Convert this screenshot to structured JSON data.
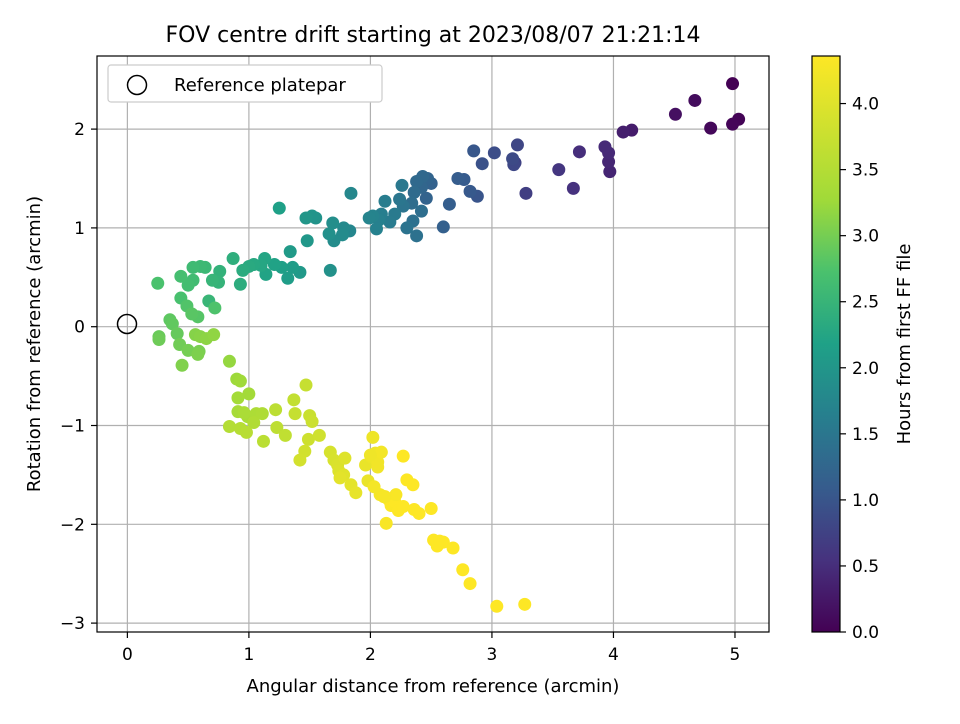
{
  "chart_data": {
    "type": "scatter",
    "title": "FOV centre drift starting at 2023/08/07 21:21:14",
    "xlabel": "Angular distance from reference (arcmin)",
    "ylabel": "Rotation from reference (arcmin)",
    "xlim": [
      -0.25,
      5.28
    ],
    "ylim": [
      -3.09,
      2.74
    ],
    "xticks": [
      "0",
      "1",
      "2",
      "3",
      "4",
      "5"
    ],
    "yticks": [
      "−3",
      "−2",
      "−1",
      "0",
      "1",
      "2"
    ],
    "grid": true,
    "legend": {
      "position": "top-left",
      "label": "Reference platepar"
    },
    "reference_point": {
      "x": 0,
      "y": 0
    },
    "colorbar": {
      "label": "Hours from first FF file",
      "range": [
        0,
        4.36
      ],
      "ticks": [
        "0.0",
        "0.5",
        "1.0",
        "1.5",
        "2.0",
        "2.5",
        "3.0",
        "3.5",
        "4.0"
      ],
      "colormap": "viridis"
    },
    "points": [
      [
        4.98,
        2.46,
        0.0
      ],
      [
        5.03,
        2.1,
        0.03
      ],
      [
        4.98,
        2.05,
        0.05
      ],
      [
        4.8,
        2.01,
        0.08
      ],
      [
        4.67,
        2.29,
        0.12
      ],
      [
        4.51,
        2.15,
        0.17
      ],
      [
        4.15,
        1.99,
        0.3
      ],
      [
        4.08,
        1.97,
        0.33
      ],
      [
        3.97,
        1.57,
        0.4
      ],
      [
        3.96,
        1.67,
        0.42
      ],
      [
        3.96,
        1.76,
        0.44
      ],
      [
        3.93,
        1.82,
        0.46
      ],
      [
        3.72,
        1.77,
        0.5
      ],
      [
        3.67,
        1.4,
        0.55
      ],
      [
        3.55,
        1.59,
        0.6
      ],
      [
        3.28,
        1.35,
        0.7
      ],
      [
        3.19,
        1.66,
        0.75
      ],
      [
        3.21,
        1.84,
        0.8
      ],
      [
        3.18,
        1.64,
        0.82
      ],
      [
        3.17,
        1.7,
        0.85
      ],
      [
        3.02,
        1.76,
        0.9
      ],
      [
        2.92,
        1.65,
        0.95
      ],
      [
        2.88,
        1.32,
        1.0
      ],
      [
        2.85,
        1.78,
        1.02
      ],
      [
        2.82,
        1.37,
        1.05
      ],
      [
        2.77,
        1.49,
        1.08
      ],
      [
        2.72,
        1.5,
        1.1
      ],
      [
        2.65,
        1.24,
        1.12
      ],
      [
        2.6,
        1.01,
        1.15
      ],
      [
        2.5,
        1.45,
        1.18
      ],
      [
        2.46,
        1.3,
        1.2
      ],
      [
        2.47,
        1.5,
        1.22
      ],
      [
        2.42,
        1.41,
        1.25
      ],
      [
        2.43,
        1.52,
        1.27
      ],
      [
        2.38,
        1.47,
        1.3
      ],
      [
        2.36,
        1.36,
        1.32
      ],
      [
        2.34,
        1.25,
        1.35
      ],
      [
        2.42,
        1.17,
        1.37
      ],
      [
        2.35,
        1.07,
        1.4
      ],
      [
        2.38,
        0.92,
        1.42
      ],
      [
        2.3,
        1.0,
        1.45
      ],
      [
        2.27,
        1.22,
        1.47
      ],
      [
        2.24,
        1.29,
        1.5
      ],
      [
        2.26,
        1.43,
        1.52
      ],
      [
        2.2,
        1.14,
        1.55
      ],
      [
        2.16,
        1.06,
        1.57
      ],
      [
        2.12,
        1.27,
        1.6
      ],
      [
        2.09,
        1.14,
        1.62
      ],
      [
        2.07,
        1.08,
        1.65
      ],
      [
        2.05,
        0.99,
        1.67
      ],
      [
        2.02,
        1.12,
        1.7
      ],
      [
        1.99,
        1.1,
        1.72
      ],
      [
        1.83,
        0.97,
        1.75
      ],
      [
        1.84,
        1.35,
        1.77
      ],
      [
        1.78,
        1.0,
        1.8
      ],
      [
        1.77,
        0.93,
        1.82
      ],
      [
        1.7,
        0.87,
        1.85
      ],
      [
        1.69,
        1.05,
        1.87
      ],
      [
        1.66,
        0.94,
        1.9
      ],
      [
        1.67,
        0.57,
        1.92
      ],
      [
        1.55,
        1.1,
        1.95
      ],
      [
        1.52,
        1.12,
        1.97
      ],
      [
        1.47,
        1.1,
        2.0
      ],
      [
        1.48,
        0.87,
        2.02
      ],
      [
        1.42,
        0.55,
        2.05
      ],
      [
        1.34,
        0.76,
        2.07
      ],
      [
        1.36,
        0.6,
        2.1
      ],
      [
        1.32,
        0.49,
        2.12
      ],
      [
        1.27,
        0.6,
        2.15
      ],
      [
        1.25,
        1.2,
        2.17
      ],
      [
        1.21,
        0.63,
        2.2
      ],
      [
        1.14,
        0.53,
        2.22
      ],
      [
        1.13,
        0.69,
        2.25
      ],
      [
        1.1,
        0.62,
        2.27
      ],
      [
        1.04,
        0.63,
        2.3
      ],
      [
        1.0,
        0.61,
        2.32
      ],
      [
        0.95,
        0.57,
        2.35
      ],
      [
        0.93,
        0.43,
        2.37
      ],
      [
        0.87,
        0.69,
        2.4
      ],
      [
        0.76,
        0.56,
        2.45
      ],
      [
        0.75,
        0.45,
        2.47
      ],
      [
        0.7,
        0.47,
        2.5
      ],
      [
        0.67,
        0.26,
        2.52
      ],
      [
        0.64,
        0.6,
        2.55
      ],
      [
        0.6,
        0.61,
        2.57
      ],
      [
        0.54,
        0.6,
        2.6
      ],
      [
        0.54,
        0.47,
        2.62
      ],
      [
        0.5,
        0.42,
        2.65
      ],
      [
        0.44,
        0.51,
        2.67
      ],
      [
        0.44,
        0.29,
        2.7
      ],
      [
        0.25,
        0.44,
        2.72
      ],
      [
        0.72,
        0.19,
        2.75
      ],
      [
        0.49,
        0.21,
        2.77
      ],
      [
        0.58,
        0.1,
        2.8
      ],
      [
        0.53,
        0.13,
        2.82
      ],
      [
        0.35,
        0.07,
        2.85
      ],
      [
        0.37,
        0.03,
        2.87
      ],
      [
        0.41,
        -0.07,
        2.9
      ],
      [
        0.26,
        -0.1,
        2.92
      ],
      [
        0.26,
        -0.13,
        2.95
      ],
      [
        0.43,
        -0.18,
        2.97
      ],
      [
        0.5,
        -0.24,
        3.0
      ],
      [
        0.59,
        -0.25,
        3.02
      ],
      [
        0.58,
        -0.28,
        3.05
      ],
      [
        0.45,
        -0.39,
        3.07
      ],
      [
        0.56,
        -0.08,
        3.1
      ],
      [
        0.6,
        -0.1,
        3.12
      ],
      [
        0.65,
        -0.12,
        3.15
      ],
      [
        0.71,
        -0.08,
        3.17
      ],
      [
        0.84,
        -0.35,
        3.2
      ],
      [
        0.9,
        -0.53,
        3.25
      ],
      [
        0.93,
        -0.55,
        3.27
      ],
      [
        1.0,
        -0.68,
        3.3
      ],
      [
        0.91,
        -0.72,
        3.32
      ],
      [
        0.91,
        -0.86,
        3.35
      ],
      [
        0.99,
        -0.91,
        3.37
      ],
      [
        0.96,
        -0.87,
        3.4
      ],
      [
        1.06,
        -0.88,
        3.42
      ],
      [
        1.11,
        -0.88,
        3.45
      ],
      [
        1.04,
        -0.97,
        3.47
      ],
      [
        0.84,
        -1.01,
        3.5
      ],
      [
        0.93,
        -1.03,
        3.52
      ],
      [
        0.98,
        -1.07,
        3.55
      ],
      [
        1.12,
        -1.16,
        3.57
      ],
      [
        1.22,
        -0.84,
        3.6
      ],
      [
        1.23,
        -1.02,
        3.62
      ],
      [
        1.3,
        -1.1,
        3.65
      ],
      [
        1.37,
        -0.74,
        3.67
      ],
      [
        1.38,
        -0.88,
        3.7
      ],
      [
        1.47,
        -0.59,
        3.72
      ],
      [
        1.5,
        -0.9,
        3.75
      ],
      [
        1.52,
        -0.96,
        3.77
      ],
      [
        1.49,
        -1.14,
        3.8
      ],
      [
        1.58,
        -1.1,
        3.82
      ],
      [
        1.46,
        -1.26,
        3.85
      ],
      [
        1.42,
        -1.35,
        3.87
      ],
      [
        1.67,
        -1.27,
        3.9
      ],
      [
        1.7,
        -1.35,
        3.92
      ],
      [
        1.73,
        -1.4,
        3.95
      ],
      [
        1.74,
        -1.46,
        3.97
      ],
      [
        1.79,
        -1.33,
        4.0
      ],
      [
        1.78,
        -1.5,
        4.02
      ],
      [
        1.75,
        -1.53,
        4.05
      ],
      [
        1.84,
        -1.6,
        4.07
      ],
      [
        1.88,
        -1.68,
        4.1
      ],
      [
        1.96,
        -1.4,
        4.12
      ],
      [
        1.98,
        -1.56,
        4.14
      ],
      [
        2.01,
        -1.32,
        4.16
      ],
      [
        2.02,
        -1.12,
        4.18
      ],
      [
        2.04,
        -1.28,
        4.2
      ],
      [
        2.06,
        -1.37,
        4.22
      ],
      [
        2.09,
        -1.27,
        4.24
      ],
      [
        2.08,
        -1.7,
        4.26
      ],
      [
        2.11,
        -1.72,
        4.28
      ],
      [
        2.13,
        -1.99,
        4.3
      ],
      [
        2.15,
        -1.75,
        4.32
      ],
      [
        2.17,
        -1.81,
        4.34
      ],
      [
        2.2,
        -1.77,
        4.36
      ],
      [
        2.23,
        -1.86,
        4.36
      ],
      [
        2.27,
        -1.82,
        4.36
      ],
      [
        2.27,
        -1.31,
        4.36
      ],
      [
        2.3,
        -1.55,
        4.36
      ],
      [
        2.35,
        -1.6,
        4.36
      ],
      [
        2.36,
        -1.85,
        4.36
      ],
      [
        2.4,
        -1.89,
        4.36
      ],
      [
        2.5,
        -1.84,
        4.36
      ],
      [
        2.52,
        -2.16,
        4.36
      ],
      [
        2.55,
        -2.22,
        4.36
      ],
      [
        2.57,
        -2.17,
        4.36
      ],
      [
        2.6,
        -2.18,
        4.36
      ],
      [
        2.68,
        -2.24,
        4.36
      ],
      [
        2.76,
        -2.46,
        4.36
      ],
      [
        2.82,
        -2.6,
        4.36
      ],
      [
        3.04,
        -2.83,
        4.36
      ],
      [
        3.27,
        -2.81,
        4.36
      ],
      [
        2.0,
        -1.3,
        4.2
      ],
      [
        2.06,
        -1.42,
        4.22
      ],
      [
        2.21,
        -1.7,
        4.3
      ],
      [
        2.03,
        -1.62,
        4.25
      ],
      [
        2.12,
        -1.72,
        4.28
      ]
    ]
  }
}
